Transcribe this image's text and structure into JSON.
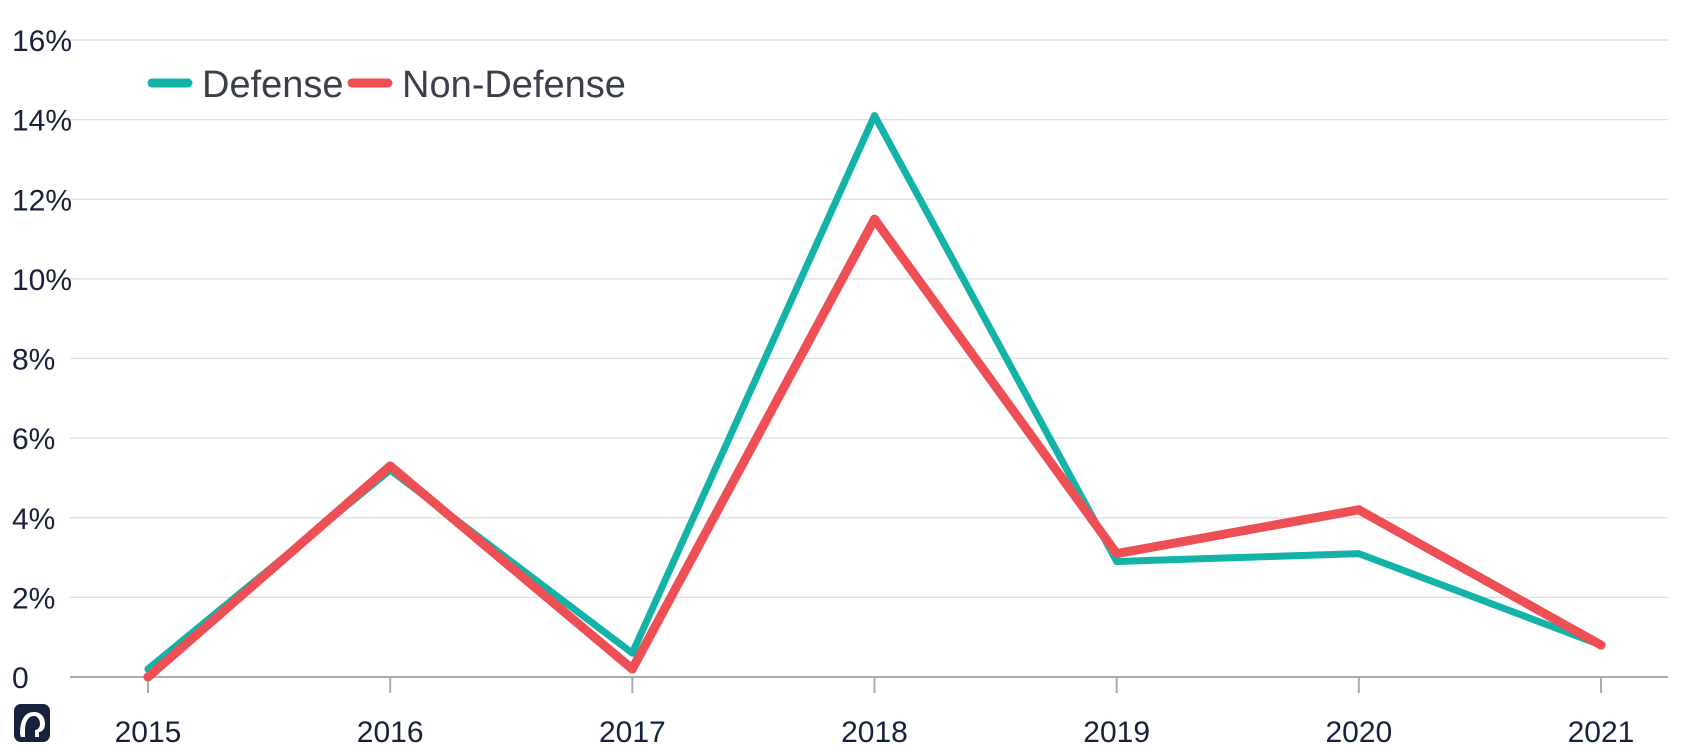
{
  "chart_data": {
    "type": "line",
    "title": "",
    "xlabel": "",
    "ylabel": "",
    "categories": [
      "2015",
      "2016",
      "2017",
      "2018",
      "2019",
      "2020",
      "2021"
    ],
    "ylim": [
      0,
      16
    ],
    "yticks": [
      0,
      2,
      4,
      6,
      8,
      10,
      12,
      14,
      16
    ],
    "ytick_labels": [
      "0",
      "2%",
      "4%",
      "6%",
      "8%",
      "10%",
      "12%",
      "14%",
      "16%"
    ],
    "grid": true,
    "legend_position": "top-left",
    "series": [
      {
        "name": "Defense",
        "color": "#13b3a8",
        "values": [
          0.2,
          5.2,
          0.6,
          14.1,
          2.9,
          3.1,
          0.8
        ]
      },
      {
        "name": "Non-Defense",
        "color": "#ee4f55",
        "values": [
          0.0,
          5.3,
          0.2,
          11.5,
          3.1,
          4.2,
          0.8
        ]
      }
    ]
  },
  "logo": {
    "icon": "elephant-icon",
    "color": "#16213d"
  }
}
